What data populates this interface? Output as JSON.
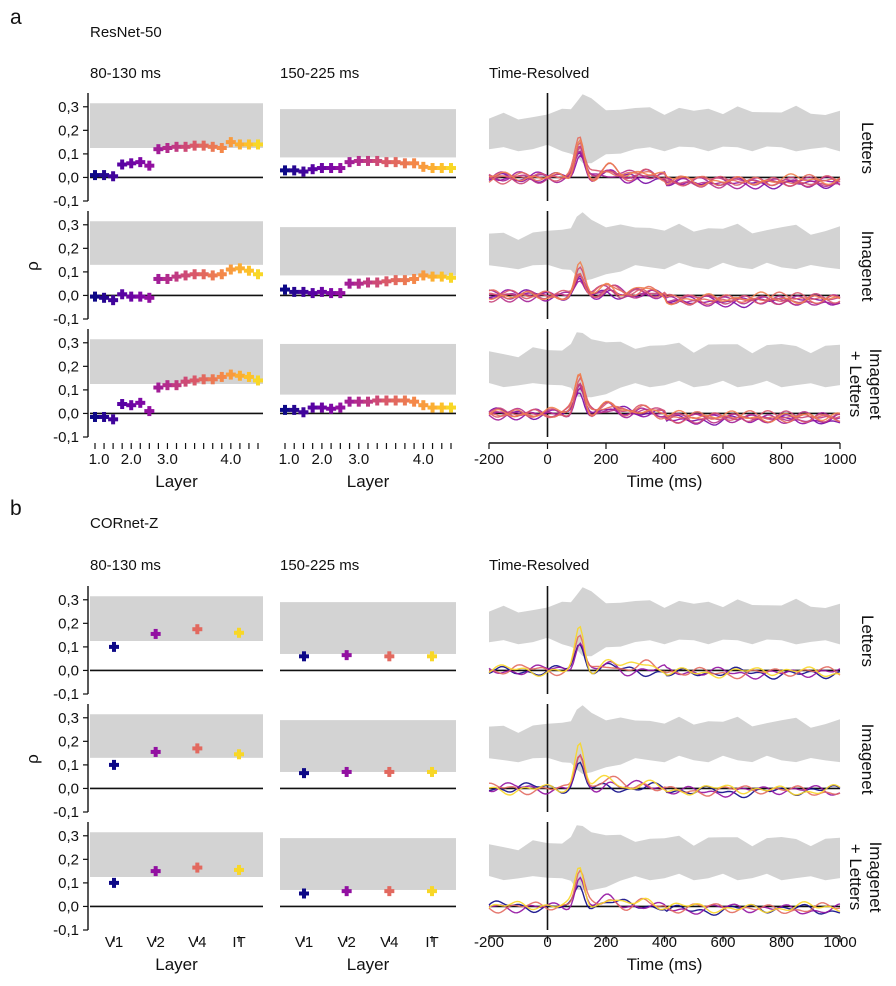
{
  "panels": [
    {
      "letter": "a",
      "network": "ResNet-50",
      "column_titles": [
        "80-130 ms",
        "150-225 ms",
        "Time-Resolved"
      ],
      "row_labels": [
        [
          "Letters"
        ],
        [
          "Imagenet"
        ],
        [
          "Imagenet",
          "+ Letters"
        ]
      ],
      "layer_axis_label": "Layer",
      "time_axis_label": "Time (ms)",
      "y_axis_label": "ρ",
      "layer_tick_labels": [
        "1.0",
        "2.0",
        "3.0",
        "4.0"
      ]
    },
    {
      "letter": "b",
      "network": "CORnet-Z",
      "column_titles": [
        "80-130 ms",
        "150-225 ms",
        "Time-Resolved"
      ],
      "row_labels": [
        [
          "Letters"
        ],
        [
          "Imagenet"
        ],
        [
          "Imagenet",
          "+ Letters"
        ]
      ],
      "layer_axis_label": "Layer",
      "time_axis_label": "Time (ms)",
      "y_axis_label": "ρ",
      "layer_tick_labels": [
        "V1",
        "V2",
        "V4",
        "IT"
      ]
    }
  ],
  "chart_data": [
    {
      "type": "scatter",
      "panel": "a",
      "network": "ResNet-50",
      "window": "80-130 ms",
      "xlabel": "Layer",
      "ylabel": "ρ",
      "ylim": [
        -0.1,
        0.35
      ],
      "yticks": [
        "-0,1",
        "0,0",
        "0,1",
        "0,2",
        "0,3"
      ],
      "xticks": [
        "1.0",
        "2.0",
        "3.0",
        "4.0"
      ],
      "series": [
        {
          "name": "Letters",
          "noise_ceiling": [
            0.125,
            0.315
          ],
          "values": [
            0.01,
            0.01,
            0.005,
            0.055,
            0.06,
            0.065,
            0.05,
            0.12,
            0.125,
            0.13,
            0.13,
            0.135,
            0.135,
            0.13,
            0.125,
            0.15,
            0.14,
            0.14,
            0.14
          ]
        },
        {
          "name": "Imagenet",
          "noise_ceiling": [
            0.13,
            0.315
          ],
          "values": [
            -0.005,
            -0.01,
            -0.02,
            0.005,
            -0.005,
            -0.005,
            -0.01,
            0.07,
            0.07,
            0.08,
            0.085,
            0.09,
            0.09,
            0.085,
            0.09,
            0.11,
            0.115,
            0.105,
            0.09
          ]
        },
        {
          "name": "Imagenet + Letters",
          "noise_ceiling": [
            0.125,
            0.315
          ],
          "values": [
            -0.015,
            -0.015,
            -0.025,
            0.04,
            0.035,
            0.045,
            0.01,
            0.11,
            0.12,
            0.12,
            0.135,
            0.14,
            0.145,
            0.145,
            0.155,
            0.165,
            0.16,
            0.155,
            0.14
          ]
        }
      ]
    },
    {
      "type": "scatter",
      "panel": "a",
      "network": "ResNet-50",
      "window": "150-225 ms",
      "xlabel": "Layer",
      "ylabel": "ρ",
      "ylim": [
        -0.1,
        0.35
      ],
      "xticks": [
        "1.0",
        "2.0",
        "3.0",
        "4.0"
      ],
      "series": [
        {
          "name": "Letters",
          "noise_ceiling": [
            0.085,
            0.29
          ],
          "values": [
            0.03,
            0.03,
            0.025,
            0.035,
            0.04,
            0.04,
            0.04,
            0.065,
            0.07,
            0.07,
            0.07,
            0.065,
            0.065,
            0.06,
            0.06,
            0.045,
            0.04,
            0.04,
            0.04
          ]
        },
        {
          "name": "Imagenet",
          "noise_ceiling": [
            0.085,
            0.29
          ],
          "values": [
            0.025,
            0.015,
            0.015,
            0.01,
            0.015,
            0.01,
            0.01,
            0.05,
            0.05,
            0.055,
            0.055,
            0.06,
            0.065,
            0.065,
            0.07,
            0.085,
            0.08,
            0.08,
            0.075
          ]
        },
        {
          "name": "Imagenet + Letters",
          "noise_ceiling": [
            0.08,
            0.295
          ],
          "values": [
            0.015,
            0.015,
            0.005,
            0.025,
            0.025,
            0.02,
            0.025,
            0.05,
            0.05,
            0.05,
            0.055,
            0.055,
            0.055,
            0.055,
            0.05,
            0.035,
            0.025,
            0.025,
            0.025
          ]
        }
      ]
    },
    {
      "type": "line",
      "panel": "a",
      "network": "ResNet-50",
      "window": "Time-Resolved",
      "xlabel": "Time (ms)",
      "ylabel": "ρ",
      "xlim": [
        -200,
        1000
      ],
      "ylim": [
        -0.1,
        0.35
      ],
      "xticks": [
        "-200",
        "0",
        "200",
        "400",
        "600",
        "800",
        "1000"
      ],
      "noise_ceiling": {
        "t": [
          -200,
          -150,
          -100,
          -50,
          0,
          50,
          80,
          100,
          120,
          150,
          200,
          250,
          300,
          350,
          400,
          450,
          500,
          550,
          600,
          650,
          700,
          750,
          800,
          850,
          900,
          950,
          1000
        ],
        "lower": [
          0.12,
          0.12,
          0.12,
          0.12,
          0.13,
          0.12,
          0.1,
          0.08,
          0.07,
          0.06,
          0.09,
          0.11,
          0.12,
          0.12,
          0.12,
          0.13,
          0.12,
          0.12,
          0.13,
          0.12,
          0.12,
          0.13,
          0.12,
          0.12,
          0.12,
          0.12,
          0.12
        ],
        "upper": [
          0.25,
          0.26,
          0.25,
          0.27,
          0.26,
          0.28,
          0.3,
          0.33,
          0.34,
          0.33,
          0.3,
          0.29,
          0.28,
          0.3,
          0.28,
          0.29,
          0.27,
          0.3,
          0.28,
          0.29,
          0.27,
          0.29,
          0.28,
          0.29,
          0.27,
          0.28,
          0.28
        ]
      },
      "series": [
        {
          "name": "Letters",
          "peak": 0.17
        },
        {
          "name": "Imagenet",
          "peak": 0.12
        },
        {
          "name": "Imagenet + Letters",
          "peak": 0.17
        }
      ]
    },
    {
      "type": "scatter",
      "panel": "b",
      "network": "CORnet-Z",
      "window": "80-130 ms",
      "xlabel": "Layer",
      "ylabel": "ρ",
      "ylim": [
        -0.1,
        0.35
      ],
      "xticks": [
        "V1",
        "V2",
        "V4",
        "IT"
      ],
      "series": [
        {
          "name": "Letters",
          "noise_ceiling": [
            0.125,
            0.315
          ],
          "values": [
            0.1,
            0.155,
            0.175,
            0.16
          ]
        },
        {
          "name": "Imagenet",
          "noise_ceiling": [
            0.13,
            0.315
          ],
          "values": [
            0.1,
            0.155,
            0.17,
            0.145
          ]
        },
        {
          "name": "Imagenet + Letters",
          "noise_ceiling": [
            0.125,
            0.315
          ],
          "values": [
            0.1,
            0.15,
            0.165,
            0.155
          ]
        }
      ]
    },
    {
      "type": "scatter",
      "panel": "b",
      "network": "CORnet-Z",
      "window": "150-225 ms",
      "xlabel": "Layer",
      "ylabel": "ρ",
      "ylim": [
        -0.1,
        0.35
      ],
      "xticks": [
        "V1",
        "V2",
        "V4",
        "IT"
      ],
      "series": [
        {
          "name": "Letters",
          "noise_ceiling": [
            0.07,
            0.29
          ],
          "values": [
            0.06,
            0.065,
            0.06,
            0.06
          ]
        },
        {
          "name": "Imagenet",
          "noise_ceiling": [
            0.07,
            0.29
          ],
          "values": [
            0.065,
            0.07,
            0.07,
            0.07
          ]
        },
        {
          "name": "Imagenet + Letters",
          "noise_ceiling": [
            0.07,
            0.29
          ],
          "values": [
            0.055,
            0.065,
            0.065,
            0.065
          ]
        }
      ]
    },
    {
      "type": "line",
      "panel": "b",
      "network": "CORnet-Z",
      "window": "Time-Resolved",
      "xlabel": "Time (ms)",
      "ylabel": "ρ",
      "xlim": [
        -200,
        1000
      ],
      "ylim": [
        -0.1,
        0.35
      ],
      "xticks": [
        "-200",
        "0",
        "200",
        "400",
        "600",
        "800",
        "1000"
      ],
      "noise_ceiling": {
        "t": [
          -200,
          -150,
          -100,
          -50,
          0,
          50,
          80,
          100,
          120,
          150,
          200,
          250,
          300,
          350,
          400,
          450,
          500,
          550,
          600,
          650,
          700,
          750,
          800,
          850,
          900,
          950,
          1000
        ],
        "lower": [
          0.12,
          0.12,
          0.12,
          0.12,
          0.13,
          0.12,
          0.1,
          0.08,
          0.07,
          0.06,
          0.09,
          0.11,
          0.12,
          0.12,
          0.12,
          0.13,
          0.12,
          0.12,
          0.13,
          0.12,
          0.12,
          0.13,
          0.12,
          0.12,
          0.12,
          0.12,
          0.12
        ],
        "upper": [
          0.25,
          0.26,
          0.25,
          0.27,
          0.26,
          0.28,
          0.3,
          0.33,
          0.34,
          0.33,
          0.3,
          0.29,
          0.28,
          0.3,
          0.28,
          0.29,
          0.27,
          0.3,
          0.28,
          0.29,
          0.27,
          0.29,
          0.28,
          0.29,
          0.27,
          0.28,
          0.28
        ]
      },
      "series": [
        {
          "name": "Letters",
          "peak": 0.18
        },
        {
          "name": "Imagenet",
          "peak": 0.19
        },
        {
          "name": "Imagenet + Letters",
          "peak": 0.17
        }
      ]
    }
  ]
}
